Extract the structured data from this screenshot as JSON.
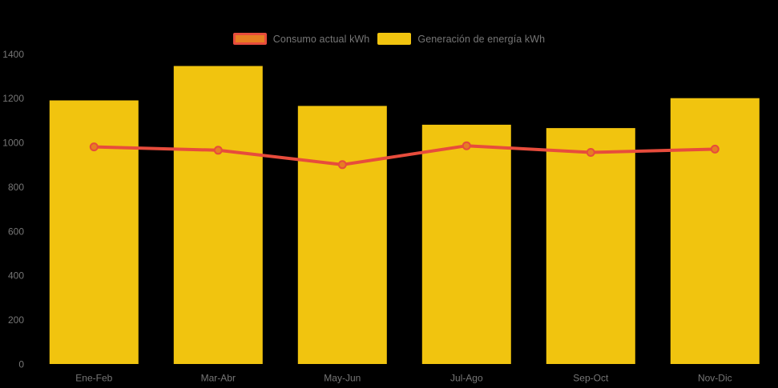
{
  "chart": {
    "background": "#000000",
    "text_color": "#767676",
    "legend": {
      "items": [
        {
          "label": "Consumo actual kWh",
          "swatch_fill": "#E67E22",
          "swatch_border": "#E74C3C"
        },
        {
          "label": "Generación de energía kWh",
          "swatch_fill": "#F1C40F",
          "swatch_border": ""
        }
      ]
    }
  },
  "chart_data": {
    "type": "bar",
    "subtype": "bar-line-combo",
    "title": "",
    "xlabel": "",
    "ylabel": "",
    "categories": [
      "Ene-Feb",
      "Mar-Abr",
      "May-Jun",
      "Jul-Ago",
      "Sep-Oct",
      "Nov-Dic"
    ],
    "series": [
      {
        "name": "Generación de energía kWh",
        "type": "bar",
        "color": "#F1C40F",
        "values": [
          1190,
          1345,
          1165,
          1080,
          1065,
          1200
        ]
      },
      {
        "name": "Consumo actual kWh",
        "type": "line",
        "color": "#E74C3C",
        "marker_fill": "#E67E22",
        "values": [
          980,
          965,
          900,
          985,
          955,
          970
        ]
      }
    ],
    "ylim": [
      0,
      1400
    ],
    "y_ticks": [
      0,
      200,
      400,
      600,
      800,
      1000,
      1200,
      1400
    ],
    "grid": false,
    "legend_position": "top-center"
  }
}
